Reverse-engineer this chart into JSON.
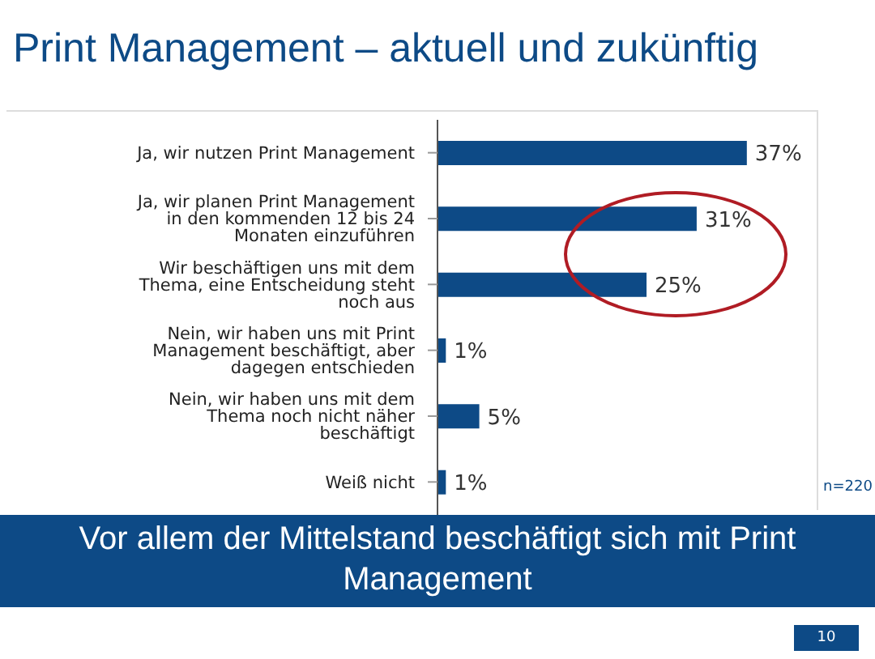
{
  "chart_data": {
    "type": "bar",
    "orientation": "horizontal",
    "title": "Print Management – aktuell und zukünftig",
    "subtitle": "Vor allem der Mittelstand beschäftigt sich mit Print Management",
    "categories": [
      "Ja, wir nutzen Print Management",
      "Ja, wir planen Print Management in den kommenden 12 bis 24 Monaten einzuführen",
      "Wir beschäftigen uns mit dem Thema, eine Entscheidung steht noch aus",
      "Nein, wir haben uns mit Print Management beschäftigt, aber dagegen entschieden",
      "Nein, wir haben uns mit dem Thema noch nicht näher beschäftigt",
      "Weiß nicht"
    ],
    "values": [
      37,
      31,
      25,
      1,
      5,
      1
    ],
    "value_labels": [
      "37%",
      "31%",
      "25%",
      "1%",
      "5%",
      "1%"
    ],
    "color": "#0d4a86",
    "annotations": [
      "n=220",
      "10"
    ]
  }
}
